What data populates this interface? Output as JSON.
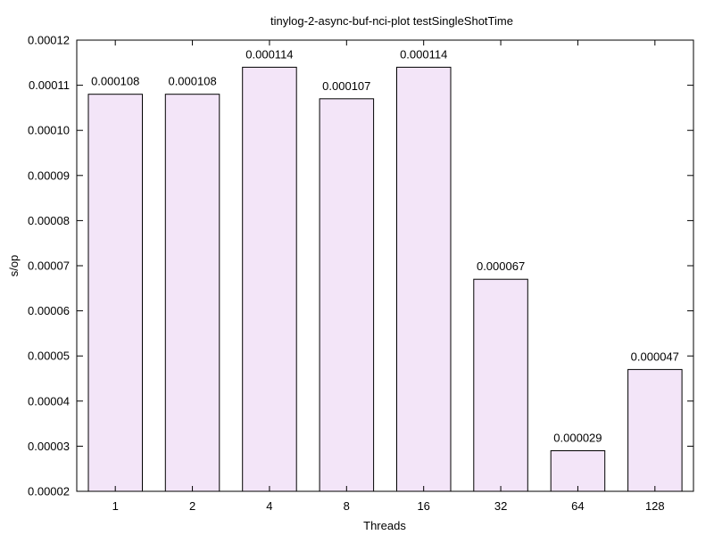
{
  "chart_data": {
    "type": "bar",
    "title": "tinylog-2-async-buf-nci-plot testSingleShotTime",
    "xlabel": "Threads",
    "ylabel": "s/op",
    "categories": [
      "1",
      "2",
      "4",
      "8",
      "16",
      "32",
      "64",
      "128"
    ],
    "values": [
      0.000108,
      0.000108,
      0.000114,
      0.000107,
      0.000114,
      6.7e-05,
      2.9e-05,
      4.7e-05
    ],
    "value_labels": [
      "0.000108",
      "0.000108",
      "0.000114",
      "0.000107",
      "0.000114",
      "0.000067",
      "0.000029",
      "0.000047"
    ],
    "ylim": [
      2e-05,
      0.00012
    ],
    "yticks": [
      2e-05,
      3e-05,
      4e-05,
      5e-05,
      6e-05,
      7e-05,
      8e-05,
      9e-05,
      0.0001,
      0.00011,
      0.00012
    ],
    "ytick_labels": [
      "0.00002",
      "0.00003",
      "0.00004",
      "0.00005",
      "0.00006",
      "0.00007",
      "0.00008",
      "0.00009",
      "0.00010",
      "0.00011",
      "0.00012"
    ],
    "grid": false,
    "legend": "none",
    "bar_color": "#f3e5f8",
    "edge_color": "#000000"
  }
}
